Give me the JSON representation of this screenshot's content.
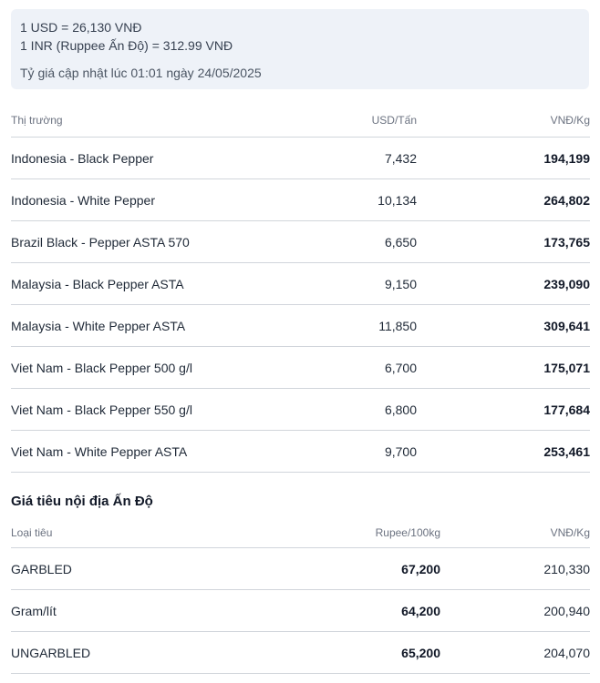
{
  "exchange": {
    "usd_line": "1 USD = 26,130 VNĐ",
    "inr_line": "1 INR (Ruppee Ấn Độ) = 312.99 VNĐ",
    "updated": "Tỷ giá cập nhật lúc 01:01 ngày 24/05/2025"
  },
  "market_table": {
    "headers": [
      "Thị trường",
      "USD/Tấn",
      "VNĐ/Kg"
    ],
    "rows": [
      {
        "market": "Indonesia - Black Pepper",
        "usd": "7,432",
        "vnd": "194,199"
      },
      {
        "market": "Indonesia - White Pepper",
        "usd": "10,134",
        "vnd": "264,802"
      },
      {
        "market": "Brazil Black - Pepper ASTA 570",
        "usd": "6,650",
        "vnd": "173,765"
      },
      {
        "market": "Malaysia - Black Pepper ASTA",
        "usd": "9,150",
        "vnd": "239,090"
      },
      {
        "market": "Malaysia - White Pepper ASTA",
        "usd": "11,850",
        "vnd": "309,641"
      },
      {
        "market": "Viet Nam - Black Pepper 500 g/l",
        "usd": "6,700",
        "vnd": "175,071"
      },
      {
        "market": "Viet Nam - Black Pepper 550 g/l",
        "usd": "6,800",
        "vnd": "177,684"
      },
      {
        "market": "Viet Nam - White Pepper ASTA",
        "usd": "9,700",
        "vnd": "253,461"
      }
    ]
  },
  "india_section": {
    "title": "Giá tiêu nội địa Ấn Độ",
    "headers": [
      "Loại tiêu",
      "Rupee/100kg",
      "VNĐ/Kg"
    ],
    "rows": [
      {
        "type": "GARBLED",
        "rupee": "67,200",
        "vnd": "210,330"
      },
      {
        "type": "Gram/lít",
        "rupee": "64,200",
        "vnd": "200,940"
      },
      {
        "type": "UNGARBLED",
        "rupee": "65,200",
        "vnd": "204,070"
      }
    ]
  }
}
